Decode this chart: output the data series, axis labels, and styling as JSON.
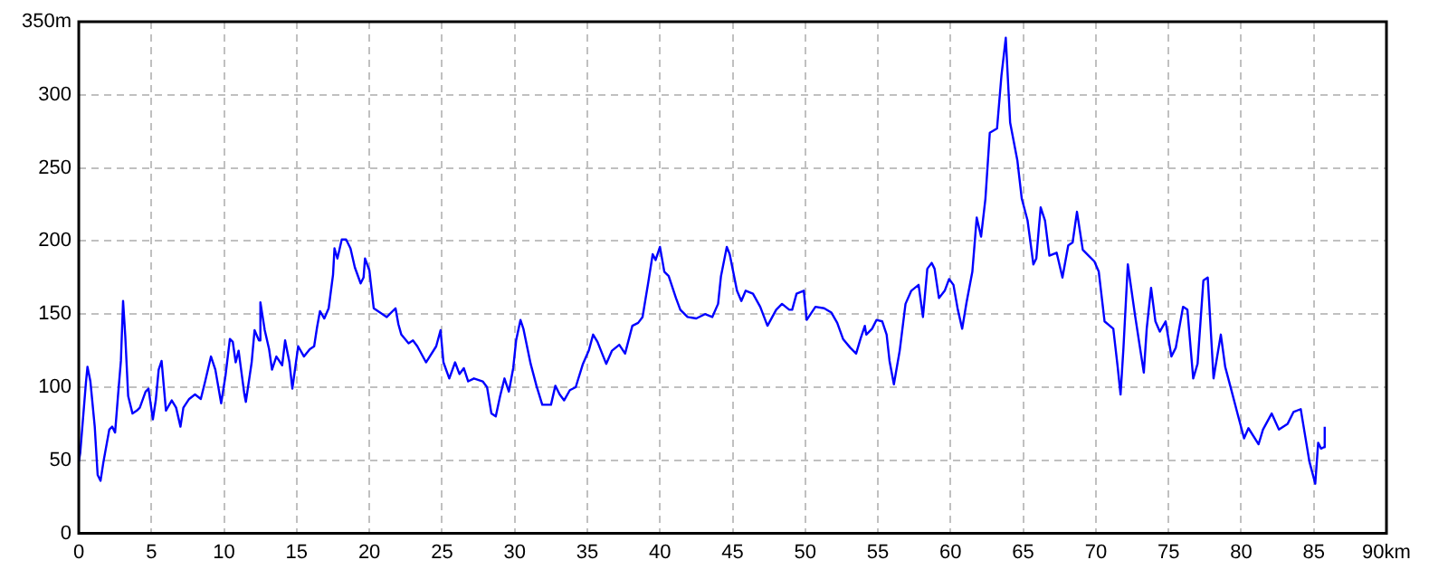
{
  "chart_data": {
    "type": "line",
    "x": [
      0,
      0.1,
      0.5,
      0.6,
      0.8,
      1.1,
      1.3,
      1.5,
      1.7,
      2.1,
      2.3,
      2.5,
      2.7,
      2.9,
      3.05,
      3.2,
      3.4,
      3.7,
      4.0,
      4.2,
      4.6,
      4.8,
      5.1,
      5.3,
      5.5,
      5.7,
      6.0,
      6.4,
      6.7,
      7.0,
      7.2,
      7.6,
      8.0,
      8.4,
      8.7,
      9.1,
      9.4,
      9.8,
      10.1,
      10.4,
      10.6,
      10.8,
      11.0,
      11.4,
      11.5,
      11.9,
      12.1,
      12.4,
      12.5,
      12.8,
      13.1,
      13.3,
      13.6,
      14.0,
      14.2,
      14.5,
      14.7,
      15.1,
      15.5,
      15.9,
      16.2,
      16.4,
      16.6,
      16.9,
      17.2,
      17.5,
      17.6,
      17.8,
      18.1,
      18.4,
      18.7,
      19.0,
      19.4,
      19.6,
      19.7,
      20.0,
      20.3,
      21.2,
      21.8,
      22.0,
      22.2,
      22.7,
      23.0,
      23.3,
      23.9,
      24.6,
      24.9,
      25.1,
      25.5,
      25.9,
      26.2,
      26.5,
      26.8,
      27.2,
      27.8,
      28.1,
      28.4,
      28.7,
      29.0,
      29.3,
      29.6,
      29.9,
      30.1,
      30.4,
      30.6,
      31.1,
      31.5,
      31.9,
      32.5,
      32.8,
      33.1,
      33.4,
      33.8,
      34.2,
      34.7,
      35.1,
      35.4,
      35.7,
      36.3,
      36.7,
      37.2,
      37.6,
      38.1,
      38.5,
      38.8,
      39.2,
      39.5,
      39.7,
      40.0,
      40.3,
      40.6,
      41.1,
      41.4,
      41.9,
      42.5,
      43.1,
      43.6,
      44.0,
      44.2,
      44.6,
      44.8,
      45.3,
      45.6,
      45.9,
      46.4,
      46.9,
      47.4,
      48.0,
      48.4,
      48.9,
      49.1,
      49.4,
      49.9,
      50.1,
      50.7,
      51.3,
      51.8,
      52.2,
      52.6,
      53.1,
      53.5,
      53.8,
      54.1,
      54.2,
      54.6,
      54.9,
      55.3,
      55.6,
      55.8,
      56.1,
      56.5,
      56.9,
      57.3,
      57.8,
      58.1,
      58.4,
      58.7,
      58.9,
      59.2,
      59.6,
      59.9,
      60.2,
      60.5,
      60.8,
      61.1,
      61.5,
      61.8,
      62.1,
      62.4,
      62.7,
      63.2,
      63.5,
      63.8,
      64.1,
      64.6,
      64.9,
      65.3,
      65.7,
      65.9,
      66.2,
      66.5,
      66.8,
      67.3,
      67.7,
      68.1,
      68.4,
      68.7,
      69.1,
      69.5,
      69.9,
      70.2,
      70.6,
      71.2,
      71.5,
      71.7,
      71.9,
      72.2,
      72.7,
      73.3,
      73.5,
      73.8,
      74.1,
      74.4,
      74.8,
      75.2,
      75.5,
      76.0,
      76.3,
      76.7,
      77.0,
      77.4,
      77.7,
      78.1,
      78.6,
      78.9,
      79.3,
      79.8,
      80.2,
      80.5,
      81.2,
      81.5,
      82.1,
      82.6,
      83.2,
      83.6,
      84.1,
      84.4,
      84.7,
      85.1,
      85.3,
      85.5,
      85.7,
      85.75
    ],
    "series": [
      {
        "color": "#0000ff",
        "values": [
          49,
          55,
          104,
          114,
          104,
          73,
          40,
          36,
          49,
          71,
          73,
          69,
          94,
          118,
          159,
          135,
          94,
          82,
          84,
          86,
          97,
          99,
          78,
          91,
          112,
          118,
          84,
          91,
          86,
          73,
          86,
          92,
          95,
          92,
          104,
          121,
          112,
          89,
          108,
          133,
          131,
          117,
          125,
          95,
          90,
          117,
          139,
          132,
          158,
          139,
          126,
          112,
          121,
          115,
          132,
          117,
          99,
          128,
          121,
          126,
          128,
          141,
          152,
          147,
          154,
          177,
          195,
          188,
          201,
          201,
          195,
          182,
          171,
          175,
          188,
          180,
          154,
          148,
          154,
          143,
          136,
          130,
          132,
          128,
          117,
          128,
          139,
          117,
          106,
          117,
          109,
          113,
          104,
          106,
          104,
          100,
          82,
          80,
          94,
          106,
          97,
          113,
          132,
          146,
          140,
          116,
          101,
          88,
          88,
          101,
          95,
          91,
          98,
          100,
          116,
          125,
          136,
          131,
          116,
          125,
          129,
          123,
          142,
          144,
          148,
          172,
          191,
          187,
          196,
          179,
          176,
          161,
          153,
          148,
          147,
          150,
          148,
          157,
          176,
          196,
          191,
          166,
          159,
          166,
          164,
          155,
          142,
          153,
          157,
          153,
          153,
          164,
          166,
          146,
          155,
          154,
          151,
          144,
          133,
          127,
          123,
          133,
          142,
          136,
          140,
          146,
          145,
          136,
          118,
          102,
          125,
          157,
          166,
          170,
          148,
          181,
          185,
          181,
          161,
          166,
          174,
          170,
          153,
          140,
          158,
          179,
          216,
          203,
          229,
          274,
          277,
          313,
          339,
          281,
          255,
          229,
          214,
          184,
          188,
          223,
          214,
          190,
          192,
          175,
          197,
          199,
          220,
          194,
          190,
          186,
          179,
          145,
          140,
          114,
          95,
          127,
          184,
          149,
          110,
          140,
          168,
          145,
          138,
          145,
          121,
          127,
          155,
          153,
          106,
          116,
          173,
          175,
          106,
          136,
          114,
          99,
          80,
          65,
          72,
          61,
          71,
          82,
          71,
          75,
          83,
          85,
          67,
          49,
          34,
          62,
          58,
          59,
          73
        ]
      }
    ],
    "xlim": [
      0,
      90
    ],
    "xticks": [
      0,
      5,
      10,
      15,
      20,
      25,
      30,
      35,
      40,
      45,
      50,
      55,
      60,
      65,
      70,
      75,
      80,
      85,
      {
        "value": 90,
        "label": "90km"
      }
    ],
    "ylim": [
      0,
      350
    ],
    "yticks": [
      0,
      50,
      100,
      150,
      200,
      250,
      300,
      {
        "value": 350,
        "label": "350m"
      }
    ],
    "grid": true,
    "legend": false,
    "marker": "none",
    "line_style": "solid"
  }
}
